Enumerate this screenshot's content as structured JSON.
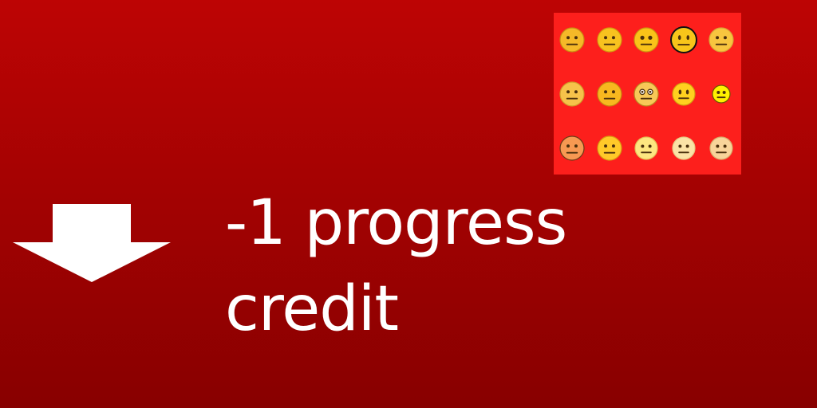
{
  "message": {
    "line1": "-1 progress",
    "line2": "credit"
  },
  "arrow": {
    "icon": "down-arrow-icon",
    "color": "#ffffff"
  },
  "emoji_grid": {
    "icon": "neutral-face-icon",
    "background": "#fd1f1c",
    "rows": 3,
    "columns": 5,
    "faces": [
      {
        "fill": "#f5b928",
        "stroke": "#c98a12",
        "eyes": "dot",
        "mouth": "line"
      },
      {
        "fill": "#f8c21f",
        "stroke": "#d39a10",
        "eyes": "dot",
        "mouth": "line"
      },
      {
        "fill": "#f9c319",
        "stroke": "#cc9410",
        "eyes": "round",
        "mouth": "line"
      },
      {
        "fill": "#f7c51a",
        "stroke": "#111111",
        "eyes": "tall",
        "mouth": "line"
      },
      {
        "fill": "#f7c53f",
        "stroke": "#d9a237",
        "eyes": "dot",
        "mouth": "line"
      },
      {
        "fill": "#f6c24a",
        "stroke": "#d19c2a",
        "eyes": "dot",
        "mouth": "line"
      },
      {
        "fill": "#f7b81f",
        "stroke": "#c8860f",
        "eyes": "dot",
        "mouth": "line"
      },
      {
        "fill": "#f7c857",
        "stroke": "#b98a20",
        "eyes": "ring",
        "mouth": "line"
      },
      {
        "fill": "#ffd11f",
        "stroke": "#d3a10d",
        "eyes": "tall",
        "mouth": "line"
      },
      {
        "fill": "#fff100",
        "stroke": "#6b5a00",
        "eyes": "dot",
        "mouth": "line"
      },
      {
        "fill": "#f79952",
        "stroke": "#6b3a16",
        "eyes": "dot",
        "mouth": "line"
      },
      {
        "fill": "#ffc929",
        "stroke": "#d99a13",
        "eyes": "dot",
        "mouth": "line"
      },
      {
        "fill": "#fde680",
        "stroke": "#e4bf56",
        "eyes": "dot",
        "mouth": "line"
      },
      {
        "fill": "#fbe3a6",
        "stroke": "#e6c983",
        "eyes": "dot",
        "mouth": "line"
      },
      {
        "fill": "#f8d49a",
        "stroke": "#d9ad6d",
        "eyes": "dot",
        "mouth": "line"
      }
    ]
  }
}
